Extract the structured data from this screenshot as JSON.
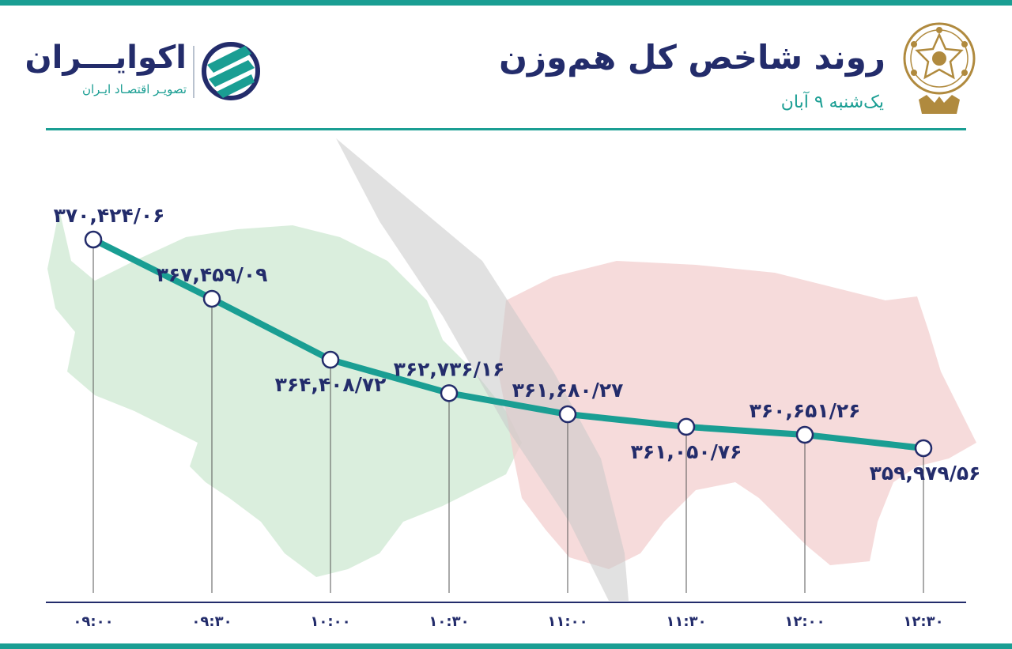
{
  "header": {
    "title": "روند شاخص کل هم‌وزن",
    "date": "یک‌شنبه ۹ آبان"
  },
  "brand": {
    "name": "اکوایـــران",
    "tagline": "تصویـر اقتصـاد ایـران"
  },
  "colors": {
    "accent": "#1a9e93",
    "text": "#232c6b",
    "seal": "#b08a3e"
  },
  "icons": {
    "seal": "tehran-stock-exchange-seal-icon",
    "brand": "ecoiran-logo-icon",
    "background": [
      "bull-silhouette",
      "bear-silhouette"
    ]
  },
  "chart_data": {
    "type": "line",
    "title": "روند شاخص کل هم‌وزن",
    "xlabel": "",
    "ylabel": "",
    "categories": [
      "۰۹:۰۰",
      "۰۹:۳۰",
      "۱۰:۰۰",
      "۱۰:۳۰",
      "۱۱:۰۰",
      "۱۱:۳۰",
      "۱۲:۰۰",
      "۱۲:۳۰"
    ],
    "values": [
      370424.06,
      367459.09,
      364408.72,
      362736.16,
      361680.27,
      361050.76,
      360651.26,
      359979.56
    ],
    "labels": [
      "۳۷۰,۴۲۴/۰۶",
      "۳۶۷,۴۵۹/۰۹",
      "۳۶۴,۴۰۸/۷۲",
      "۳۶۲,۷۳۶/۱۶",
      "۳۶۱,۶۸۰/۲۷",
      "۳۶۱,۰۵۰/۷۶",
      "۳۶۰,۶۵۱/۲۶",
      "۳۵۹,۹۷۹/۵۶"
    ],
    "label_side": [
      "above",
      "above",
      "below",
      "above",
      "above",
      "below",
      "above",
      "below"
    ],
    "ylim": [
      358500,
      371500
    ],
    "grid": false,
    "legend": "none"
  }
}
